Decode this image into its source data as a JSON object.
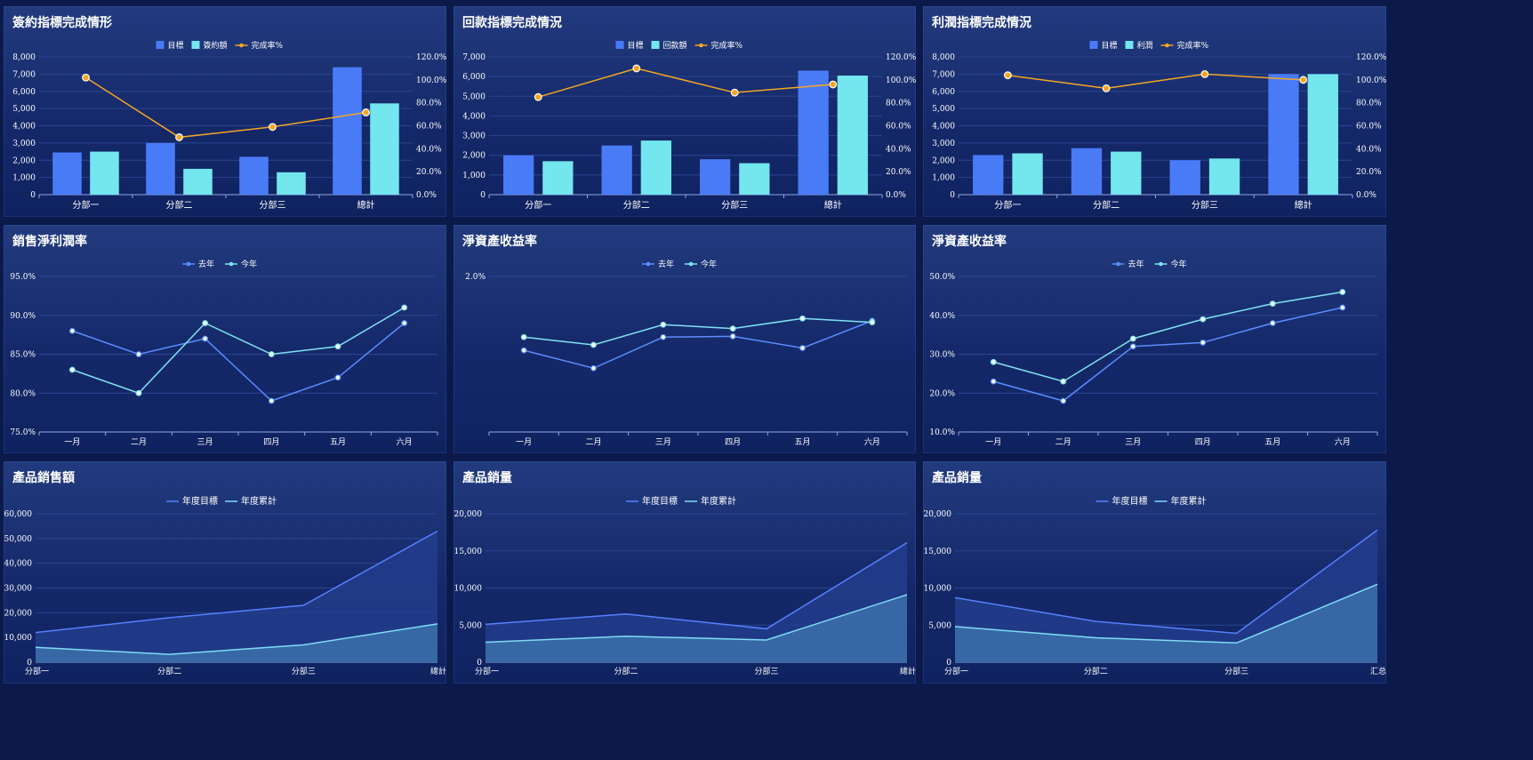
{
  "chart_data": [
    {
      "id": "c1",
      "type": "bar-line",
      "title": "簽約指標完成情形",
      "categories": [
        "分部一",
        "分部二",
        "分部三",
        "總計"
      ],
      "series": [
        {
          "name": "目標",
          "type": "bar",
          "values": [
            2450,
            3000,
            2200,
            7400
          ]
        },
        {
          "name": "簽約額",
          "type": "bar",
          "values": [
            2500,
            1500,
            1300,
            5300
          ]
        },
        {
          "name": "完成率%",
          "type": "line",
          "axis": "right",
          "values": [
            102,
            50,
            59,
            71.6
          ]
        }
      ],
      "ylim": [
        0,
        8000
      ],
      "yticks": [
        "8,000",
        "7,000",
        "6,000",
        "5,000",
        "4,000",
        "3,000",
        "2,000",
        "1,000",
        "0"
      ],
      "y2lim": [
        0,
        120
      ],
      "y2ticks": [
        "120.0%",
        "100.0%",
        "80.0%",
        "60.0%",
        "40.0%",
        "20.0%",
        "0.0%"
      ]
    },
    {
      "id": "c2",
      "type": "bar-line",
      "title": "回款指標完成情況",
      "categories": [
        "分部一",
        "分部二",
        "分部三",
        "總計"
      ],
      "series": [
        {
          "name": "目標",
          "type": "bar",
          "values": [
            2000,
            2500,
            1800,
            6300
          ]
        },
        {
          "name": "回款額",
          "type": "bar",
          "values": [
            1700,
            2750,
            1600,
            6050
          ]
        },
        {
          "name": "完成率%",
          "type": "line",
          "axis": "right",
          "values": [
            85,
            110,
            88.9,
            96
          ]
        }
      ],
      "ylim": [
        0,
        7000
      ],
      "yticks": [
        "7,000",
        "6,000",
        "5,000",
        "4,000",
        "3,000",
        "2,000",
        "1,000",
        "0"
      ],
      "y2lim": [
        0,
        120
      ],
      "y2ticks": [
        "120.0%",
        "100.0%",
        "80.0%",
        "60.0%",
        "40.0%",
        "20.0%",
        "0.0%"
      ]
    },
    {
      "id": "c3",
      "type": "bar-line",
      "title": "利潤指標完成情況",
      "categories": [
        "分部一",
        "分部二",
        "分部三",
        "總計"
      ],
      "series": [
        {
          "name": "目標",
          "type": "bar",
          "values": [
            2300,
            2700,
            2000,
            7000
          ]
        },
        {
          "name": "利潤",
          "type": "bar",
          "values": [
            2400,
            2500,
            2100,
            7000
          ]
        },
        {
          "name": "完成率%",
          "type": "line",
          "axis": "right",
          "values": [
            104,
            92.6,
            105,
            100
          ]
        }
      ],
      "ylim": [
        0,
        8000
      ],
      "yticks": [
        "8,000",
        "7,000",
        "6,000",
        "5,000",
        "4,000",
        "3,000",
        "2,000",
        "1,000",
        "0"
      ],
      "y2lim": [
        0,
        120
      ],
      "y2ticks": [
        "120.0%",
        "100.0%",
        "80.0%",
        "60.0%",
        "40.0%",
        "20.0%",
        "0.0%"
      ]
    },
    {
      "id": "c4",
      "type": "line",
      "title": "銷售淨利潤率",
      "categories": [
        "一月",
        "二月",
        "三月",
        "四月",
        "五月",
        "六月"
      ],
      "series": [
        {
          "name": "去年",
          "values": [
            88,
            85,
            87,
            79,
            82,
            89
          ]
        },
        {
          "name": "今年",
          "values": [
            83,
            80,
            89,
            85,
            86,
            91
          ]
        }
      ],
      "ylim": [
        75,
        95
      ],
      "yticks": [
        "95.0%",
        "90.0%",
        "85.0%",
        "80.0%",
        "75.0%"
      ]
    },
    {
      "id": "c5",
      "type": "line",
      "title": "淨資產收益率",
      "categories": [
        "一月",
        "二月",
        "三月",
        "四月",
        "五月",
        "六月"
      ],
      "series": [
        {
          "name": "去年",
          "values": [
            1.05,
            0.82,
            1.22,
            1.23,
            1.08,
            1.43
          ]
        },
        {
          "name": "今年",
          "values": [
            1.22,
            1.12,
            1.38,
            1.33,
            1.46,
            1.41
          ]
        }
      ],
      "ylim": [
        0,
        2
      ],
      "yticks": [
        "2.0%"
      ]
    },
    {
      "id": "c6",
      "type": "line",
      "title": "淨資產收益率",
      "categories": [
        "一月",
        "二月",
        "三月",
        "四月",
        "五月",
        "六月"
      ],
      "series": [
        {
          "name": "去年",
          "values": [
            23,
            18,
            32,
            33,
            38,
            42
          ]
        },
        {
          "name": "今年",
          "values": [
            28,
            23,
            34,
            39,
            43,
            46
          ]
        }
      ],
      "ylim": [
        10,
        50
      ],
      "yticks": [
        "50.0%",
        "40.0%",
        "30.0%",
        "20.0%",
        "10.0%"
      ]
    },
    {
      "id": "c7",
      "type": "area",
      "title": "產品銷售額",
      "categories": [
        "分部一",
        "分部二",
        "分部三",
        "總計"
      ],
      "series": [
        {
          "name": "年度目標",
          "values": [
            12000,
            18000,
            23000,
            53000
          ]
        },
        {
          "name": "年度累計",
          "values": [
            6000,
            3200,
            7000,
            15500
          ]
        }
      ],
      "ylim": [
        0,
        60000
      ],
      "yticks": [
        "60,000",
        "50,000",
        "40,000",
        "30,000",
        "20,000",
        "10,000",
        "0"
      ]
    },
    {
      "id": "c8",
      "type": "area",
      "title": "產品銷量",
      "categories": [
        "分部一",
        "分部二",
        "分部三",
        "總計"
      ],
      "series": [
        {
          "name": "年度目標",
          "values": [
            5100,
            6500,
            4500,
            16100
          ]
        },
        {
          "name": "年度累計",
          "values": [
            2700,
            3500,
            3000,
            9100
          ]
        }
      ],
      "ylim": [
        0,
        20000
      ],
      "yticks": [
        "20,000",
        "15,000",
        "10,000",
        "5,000",
        "0"
      ]
    },
    {
      "id": "c9",
      "type": "area",
      "title": "產品銷量",
      "categories": [
        "分部一",
        "分部二",
        "分部三",
        "汇总"
      ],
      "series": [
        {
          "name": "年度目標",
          "values": [
            8700,
            5500,
            3900,
            17800
          ]
        },
        {
          "name": "年度累計",
          "values": [
            4800,
            3300,
            2600,
            10500
          ]
        }
      ],
      "ylim": [
        0,
        20000
      ],
      "yticks": [
        "20,000",
        "15,000",
        "10,000",
        "5,000",
        "0"
      ]
    }
  ],
  "colors": {
    "bar1": "#4a7bf7",
    "bar2": "#73e6ee",
    "line": "#f5a623",
    "lastYear": "#5b8cff",
    "thisYear": "#7fe3f0",
    "area1Line": "#5680ff",
    "area1Fill": "#233d8c",
    "area2Line": "#7fdcf5",
    "area2Fill": "#3a6ea8",
    "grid": "#2a4590",
    "axis": "#8ea7e6",
    "tick": "#ffffff"
  }
}
